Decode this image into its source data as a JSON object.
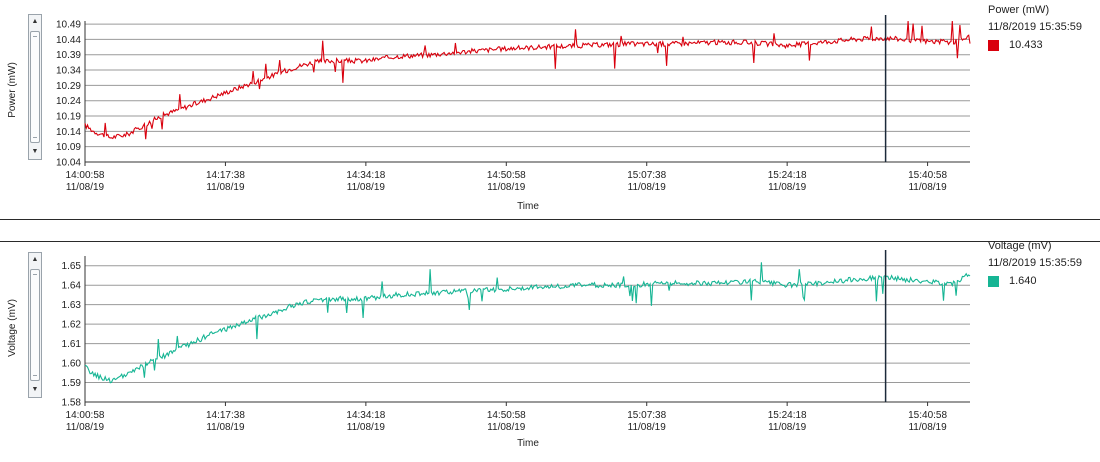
{
  "colors": {
    "power": "#d9000d",
    "voltage": "#16b594",
    "grid": "#9a9a9a",
    "cursor": "#1c2a3a"
  },
  "icons": {
    "scroll_up": "▲",
    "scroll_down": "▼"
  },
  "chart_data": [
    {
      "type": "line",
      "ylabel": "Power (mW)",
      "xlabel": "Time",
      "x_ticks": [
        {
          "time": "14:00:58",
          "date": "11/08/19"
        },
        {
          "time": "14:17:38",
          "date": "11/08/19"
        },
        {
          "time": "14:34:18",
          "date": "11/08/19"
        },
        {
          "time": "14:50:58",
          "date": "11/08/19"
        },
        {
          "time": "15:07:38",
          "date": "11/08/19"
        },
        {
          "time": "15:24:18",
          "date": "11/08/19"
        },
        {
          "time": "15:40:58",
          "date": "11/08/19"
        }
      ],
      "xlim": [
        "14:00:58",
        "15:46:00"
      ],
      "y_ticks": [
        "10.04",
        "10.09",
        "10.14",
        "10.19",
        "10.24",
        "10.29",
        "10.34",
        "10.39",
        "10.44",
        "10.49"
      ],
      "ylim": [
        10.04,
        10.5
      ],
      "grid": true,
      "cursor_time": "15:35:59",
      "series": [
        {
          "name": "Power (mW)",
          "x": [
            "14:00:58",
            "14:02:00",
            "14:04:00",
            "14:06:00",
            "14:08:00",
            "14:10:00",
            "14:12:00",
            "14:14:00",
            "14:16:00",
            "14:18:00",
            "14:20:00",
            "14:22:00",
            "14:24:00",
            "14:26:00",
            "14:28:00",
            "14:30:00",
            "14:32:00",
            "14:34:18",
            "14:38:00",
            "14:42:00",
            "14:46:00",
            "14:50:58",
            "14:55:00",
            "15:00:00",
            "15:05:00",
            "15:10:00",
            "15:15:00",
            "15:20:00",
            "15:24:18",
            "15:28:00",
            "15:32:00",
            "15:36:00",
            "15:40:00",
            "15:44:00",
            "15:46:00"
          ],
          "values": [
            10.16,
            10.14,
            10.12,
            10.13,
            10.16,
            10.19,
            10.21,
            10.23,
            10.25,
            10.27,
            10.29,
            10.31,
            10.33,
            10.35,
            10.365,
            10.37,
            10.37,
            10.37,
            10.385,
            10.39,
            10.4,
            10.41,
            10.415,
            10.42,
            10.425,
            10.425,
            10.43,
            10.43,
            10.42,
            10.43,
            10.44,
            10.445,
            10.435,
            10.43,
            10.45
          ]
        }
      ],
      "legend": {
        "title": "Power (mW)",
        "timestamp": "11/8/2019 15:35:59",
        "value": "10.433"
      }
    },
    {
      "type": "line",
      "ylabel": "Voltage (mV)",
      "xlabel": "Time",
      "x_ticks": [
        {
          "time": "14:00:58",
          "date": "11/08/19"
        },
        {
          "time": "14:17:38",
          "date": "11/08/19"
        },
        {
          "time": "14:34:18",
          "date": "11/08/19"
        },
        {
          "time": "14:50:58",
          "date": "11/08/19"
        },
        {
          "time": "15:07:38",
          "date": "11/08/19"
        },
        {
          "time": "15:24:18",
          "date": "11/08/19"
        },
        {
          "time": "15:40:58",
          "date": "11/08/19"
        }
      ],
      "xlim": [
        "14:00:58",
        "15:46:00"
      ],
      "y_ticks": [
        "1.58",
        "1.59",
        "1.60",
        "1.61",
        "1.62",
        "1.63",
        "1.64",
        "1.65"
      ],
      "ylim": [
        1.58,
        1.655
      ],
      "grid": true,
      "cursor_time": "15:35:59",
      "series": [
        {
          "name": "Voltage (mV)",
          "x": [
            "14:00:58",
            "14:02:00",
            "14:04:00",
            "14:06:00",
            "14:08:00",
            "14:10:00",
            "14:12:00",
            "14:14:00",
            "14:16:00",
            "14:18:00",
            "14:20:00",
            "14:22:00",
            "14:24:00",
            "14:26:00",
            "14:28:00",
            "14:30:00",
            "14:32:00",
            "14:34:18",
            "14:38:00",
            "14:42:00",
            "14:46:00",
            "14:50:58",
            "14:55:00",
            "15:00:00",
            "15:05:00",
            "15:10:00",
            "15:15:00",
            "15:20:00",
            "15:24:18",
            "15:28:00",
            "15:32:00",
            "15:36:00",
            "15:40:00",
            "15:44:00",
            "15:46:00"
          ],
          "values": [
            1.598,
            1.594,
            1.591,
            1.594,
            1.599,
            1.603,
            1.607,
            1.611,
            1.615,
            1.618,
            1.621,
            1.624,
            1.627,
            1.63,
            1.632,
            1.633,
            1.633,
            1.633,
            1.635,
            1.636,
            1.637,
            1.638,
            1.639,
            1.64,
            1.64,
            1.641,
            1.641,
            1.642,
            1.64,
            1.641,
            1.643,
            1.644,
            1.642,
            1.641,
            1.646
          ]
        }
      ],
      "legend": {
        "title": "Voltage (mV)",
        "timestamp": "11/8/2019 15:35:59",
        "value": "1.640"
      }
    }
  ]
}
